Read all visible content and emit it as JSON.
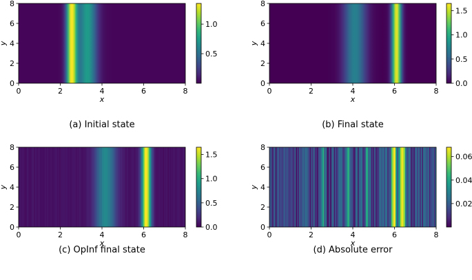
{
  "colors": {
    "viridis": [
      "#440154",
      "#482878",
      "#3e4989",
      "#31688e",
      "#26828e",
      "#1f9e89",
      "#35b779",
      "#6ece58",
      "#b5de2b",
      "#fde725"
    ],
    "axis": "#000000",
    "background": "#ffffff"
  },
  "chart_data": [
    {
      "id": "a",
      "type": "heatmap",
      "caption": "(a) Initial state",
      "xlabel": "x",
      "ylabel": "y",
      "xlim": [
        0,
        8
      ],
      "ylim": [
        0,
        8
      ],
      "xticks": [
        "0",
        "2",
        "4",
        "6",
        "8"
      ],
      "yticks": [
        "0",
        "2",
        "4",
        "6",
        "8"
      ],
      "vmin": 0.0,
      "vmax": 1.35,
      "colorbar_ticks": [
        "0.5",
        "1.0"
      ],
      "colorbar_tick_values": [
        0.5,
        1.0
      ],
      "profile": {
        "base": 0.02,
        "bumps": [
          {
            "center": 2.55,
            "width": 0.18,
            "amp": 1.33
          },
          {
            "center": 3.3,
            "width": 0.32,
            "amp": 0.72
          }
        ],
        "noise": 0
      }
    },
    {
      "id": "b",
      "type": "heatmap",
      "caption": "(b) Final state",
      "xlabel": "x",
      "ylabel": "y",
      "xlim": [
        0,
        8
      ],
      "ylim": [
        0,
        8
      ],
      "xticks": [
        "0",
        "2",
        "4",
        "6",
        "8"
      ],
      "yticks": [
        "0",
        "2",
        "4",
        "6",
        "8"
      ],
      "vmin": 0.0,
      "vmax": 1.65,
      "colorbar_ticks": [
        "0.0",
        "0.5",
        "1.0",
        "1.5"
      ],
      "colorbar_tick_values": [
        0.0,
        0.5,
        1.0,
        1.5
      ],
      "profile": {
        "base": 0.0,
        "bumps": [
          {
            "center": 6.1,
            "width": 0.16,
            "amp": 1.62
          },
          {
            "center": 4.1,
            "width": 0.38,
            "amp": 0.72
          }
        ],
        "noise": 0
      }
    },
    {
      "id": "c",
      "type": "heatmap",
      "caption": "(c) OpInf final state",
      "xlabel": "x",
      "ylabel": "y",
      "xlim": [
        0,
        8
      ],
      "ylim": [
        0,
        8
      ],
      "xticks": [
        "0",
        "2",
        "4",
        "6",
        "8"
      ],
      "yticks": [
        "0",
        "2",
        "4",
        "6",
        "8"
      ],
      "vmin": 0.0,
      "vmax": 1.65,
      "colorbar_ticks": [
        "0.0",
        "0.5",
        "1.0",
        "1.5"
      ],
      "colorbar_tick_values": [
        0.0,
        0.5,
        1.0,
        1.5
      ],
      "profile": {
        "base": 0.05,
        "bumps": [
          {
            "center": 6.1,
            "width": 0.16,
            "amp": 1.58
          },
          {
            "center": 4.15,
            "width": 0.36,
            "amp": 0.7
          }
        ],
        "noise": 0.05
      }
    },
    {
      "id": "d",
      "type": "heatmap",
      "caption": "(d) Absolute error",
      "xlabel": "x",
      "ylabel": "y",
      "xlim": [
        0,
        8
      ],
      "ylim": [
        0,
        8
      ],
      "xticks": [
        "0",
        "2",
        "4",
        "6",
        "8"
      ],
      "yticks": [
        "0",
        "2",
        "4",
        "6",
        "8"
      ],
      "vmin": 0.0,
      "vmax": 0.068,
      "colorbar_ticks": [
        "0.02",
        "0.04",
        "0.06"
      ],
      "colorbar_tick_values": [
        0.02,
        0.04,
        0.06
      ],
      "profile": {
        "base": 0.004,
        "bumps": [
          {
            "center": 5.95,
            "width": 0.09,
            "amp": 0.063
          },
          {
            "center": 6.35,
            "width": 0.09,
            "amp": 0.06
          },
          {
            "center": 3.75,
            "width": 0.06,
            "amp": 0.04
          },
          {
            "center": 2.55,
            "width": 0.06,
            "amp": 0.025
          },
          {
            "center": 4.65,
            "width": 0.06,
            "amp": 0.028
          }
        ],
        "noise": 0.022
      }
    }
  ]
}
